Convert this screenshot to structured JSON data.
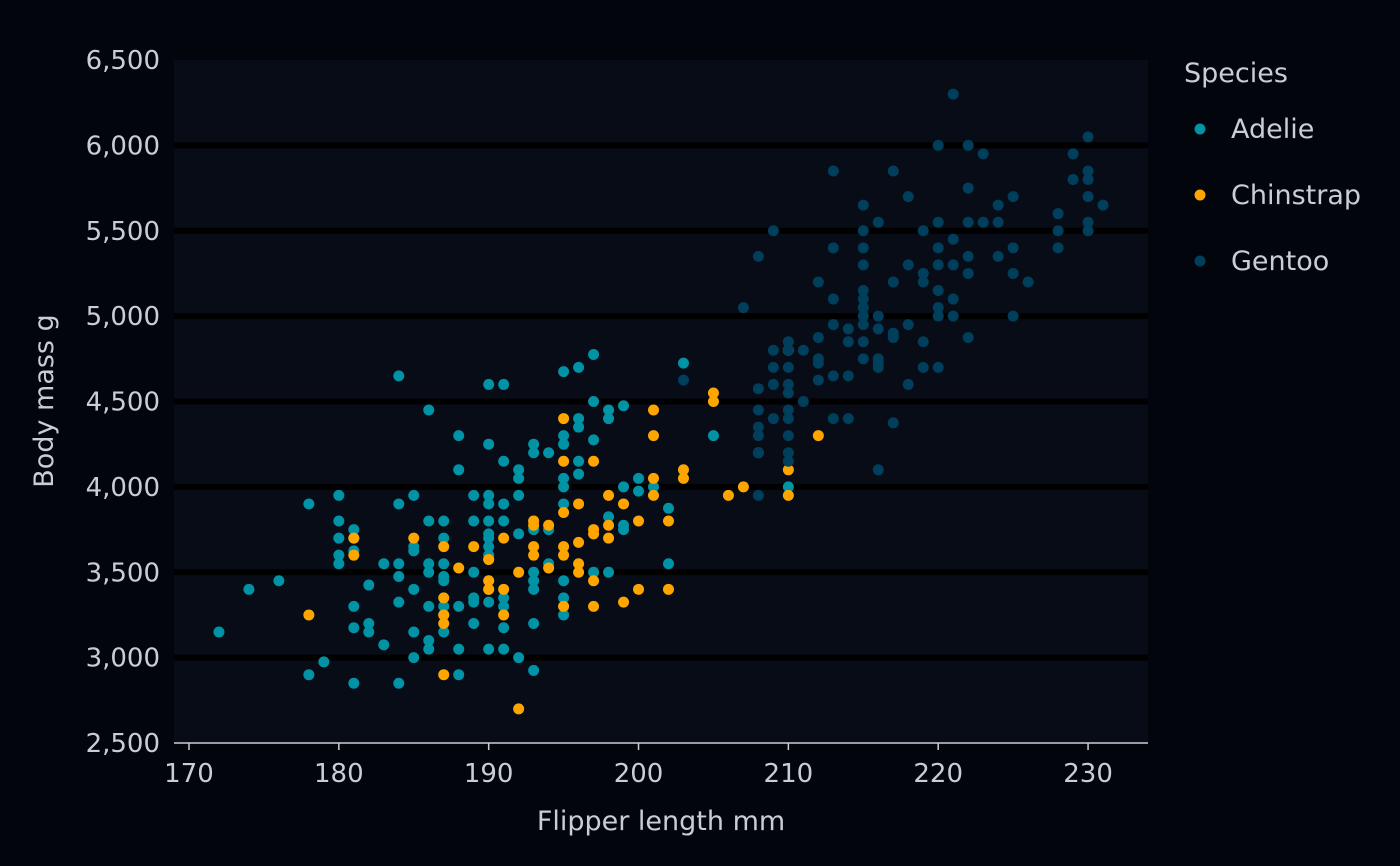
{
  "chart_data": {
    "type": "scatter",
    "title": "",
    "xlabel": "Flipper length mm",
    "ylabel": "Body mass g",
    "xlim": [
      169,
      234
    ],
    "ylim": [
      2500,
      6500
    ],
    "x_ticks": [
      170,
      180,
      190,
      200,
      210,
      220,
      230
    ],
    "x_tick_labels": [
      "170",
      "180",
      "190",
      "200",
      "210",
      "220",
      "230"
    ],
    "y_ticks": [
      2500,
      3000,
      3500,
      4000,
      4500,
      5000,
      5500,
      6000,
      6500
    ],
    "y_tick_labels": [
      "2,500",
      "3,000",
      "3,500",
      "4,000",
      "4,500",
      "5,000",
      "5,500",
      "6,000",
      "6,500"
    ],
    "grid": "horizontal major",
    "legend": {
      "title": "Species",
      "position": "right"
    },
    "colors": {
      "background": "#02050c",
      "panel": "#070c16",
      "grid": "#000000",
      "text": "#c9ced6"
    },
    "series": [
      {
        "name": "Adelie",
        "color": "#0092a5",
        "points": [
          [
            172,
            3150
          ],
          [
            174,
            3400
          ],
          [
            176,
            3450
          ],
          [
            178,
            3900
          ],
          [
            178,
            2900
          ],
          [
            179,
            2975
          ],
          [
            180,
            3950
          ],
          [
            180,
            3800
          ],
          [
            180,
            3700
          ],
          [
            180,
            3600
          ],
          [
            180,
            3550
          ],
          [
            181,
            3750
          ],
          [
            181,
            3700
          ],
          [
            181,
            3625
          ],
          [
            181,
            3300
          ],
          [
            181,
            3175
          ],
          [
            181,
            2850
          ],
          [
            182,
            3425
          ],
          [
            182,
            3200
          ],
          [
            182,
            3150
          ],
          [
            183,
            3550
          ],
          [
            183,
            3075
          ],
          [
            184,
            3900
          ],
          [
            184,
            3550
          ],
          [
            184,
            3475
          ],
          [
            184,
            3325
          ],
          [
            184,
            2850
          ],
          [
            184,
            4650
          ],
          [
            185,
            3950
          ],
          [
            185,
            3650
          ],
          [
            185,
            3625
          ],
          [
            185,
            3400
          ],
          [
            185,
            3150
          ],
          [
            185,
            3000
          ],
          [
            186,
            4450
          ],
          [
            186,
            3800
          ],
          [
            186,
            3550
          ],
          [
            186,
            3500
          ],
          [
            186,
            3300
          ],
          [
            186,
            3100
          ],
          [
            186,
            3050
          ],
          [
            187,
            3800
          ],
          [
            187,
            3700
          ],
          [
            187,
            3550
          ],
          [
            187,
            3475
          ],
          [
            187,
            3450
          ],
          [
            187,
            3300
          ],
          [
            187,
            3250
          ],
          [
            187,
            3150
          ],
          [
            188,
            4300
          ],
          [
            188,
            4100
          ],
          [
            188,
            3300
          ],
          [
            188,
            3050
          ],
          [
            188,
            2900
          ],
          [
            189,
            3950
          ],
          [
            189,
            3800
          ],
          [
            189,
            3500
          ],
          [
            189,
            3350
          ],
          [
            189,
            3325
          ],
          [
            189,
            3200
          ],
          [
            190,
            4600
          ],
          [
            190,
            4250
          ],
          [
            190,
            3950
          ],
          [
            190,
            3900
          ],
          [
            190,
            3800
          ],
          [
            190,
            3725
          ],
          [
            190,
            3700
          ],
          [
            190,
            3650
          ],
          [
            190,
            3600
          ],
          [
            190,
            3575
          ],
          [
            190,
            3450
          ],
          [
            190,
            3400
          ],
          [
            190,
            3325
          ],
          [
            190,
            3050
          ],
          [
            191,
            4600
          ],
          [
            191,
            4150
          ],
          [
            191,
            3900
          ],
          [
            191,
            3800
          ],
          [
            191,
            3350
          ],
          [
            191,
            3300
          ],
          [
            191,
            3175
          ],
          [
            191,
            3050
          ],
          [
            192,
            4100
          ],
          [
            192,
            4050
          ],
          [
            192,
            3950
          ],
          [
            192,
            3725
          ],
          [
            192,
            3000
          ],
          [
            193,
            4250
          ],
          [
            193,
            4200
          ],
          [
            193,
            3800
          ],
          [
            193,
            3750
          ],
          [
            193,
            3500
          ],
          [
            193,
            3450
          ],
          [
            193,
            3400
          ],
          [
            193,
            3200
          ],
          [
            193,
            2925
          ],
          [
            194,
            4200
          ],
          [
            194,
            3750
          ],
          [
            194,
            3550
          ],
          [
            195,
            4675
          ],
          [
            195,
            4300
          ],
          [
            195,
            4250
          ],
          [
            195,
            4050
          ],
          [
            195,
            4000
          ],
          [
            195,
            3900
          ],
          [
            195,
            3450
          ],
          [
            195,
            3350
          ],
          [
            195,
            3300
          ],
          [
            195,
            3250
          ],
          [
            196,
            4700
          ],
          [
            196,
            4400
          ],
          [
            196,
            4350
          ],
          [
            196,
            4150
          ],
          [
            196,
            4075
          ],
          [
            197,
            4775
          ],
          [
            197,
            4500
          ],
          [
            197,
            4275
          ],
          [
            197,
            3500
          ],
          [
            198,
            4450
          ],
          [
            198,
            4400
          ],
          [
            198,
            3825
          ],
          [
            198,
            3500
          ],
          [
            199,
            4475
          ],
          [
            199,
            4000
          ],
          [
            199,
            3775
          ],
          [
            199,
            3750
          ],
          [
            200,
            4050
          ],
          [
            200,
            3975
          ],
          [
            201,
            4000
          ],
          [
            202,
            3875
          ],
          [
            202,
            3550
          ],
          [
            203,
            4725
          ],
          [
            205,
            4300
          ],
          [
            208,
            4200
          ],
          [
            210,
            4000
          ]
        ]
      },
      {
        "name": "Chinstrap",
        "color": "#ffa500",
        "points": [
          [
            178,
            3250
          ],
          [
            181,
            3700
          ],
          [
            181,
            3600
          ],
          [
            185,
            3700
          ],
          [
            187,
            3650
          ],
          [
            187,
            3350
          ],
          [
            187,
            3250
          ],
          [
            187,
            3200
          ],
          [
            187,
            2900
          ],
          [
            188,
            3525
          ],
          [
            189,
            3650
          ],
          [
            190,
            3575
          ],
          [
            190,
            3450
          ],
          [
            190,
            3400
          ],
          [
            191,
            3700
          ],
          [
            191,
            3400
          ],
          [
            191,
            3250
          ],
          [
            192,
            3500
          ],
          [
            192,
            2700
          ],
          [
            193,
            3800
          ],
          [
            193,
            3775
          ],
          [
            193,
            3650
          ],
          [
            193,
            3600
          ],
          [
            194,
            3775
          ],
          [
            194,
            3525
          ],
          [
            195,
            4400
          ],
          [
            195,
            4150
          ],
          [
            195,
            3850
          ],
          [
            195,
            3650
          ],
          [
            195,
            3600
          ],
          [
            195,
            3300
          ],
          [
            196,
            3900
          ],
          [
            196,
            3675
          ],
          [
            196,
            3550
          ],
          [
            196,
            3500
          ],
          [
            197,
            4150
          ],
          [
            197,
            3750
          ],
          [
            197,
            3725
          ],
          [
            197,
            3450
          ],
          [
            197,
            3300
          ],
          [
            198,
            3950
          ],
          [
            198,
            3775
          ],
          [
            198,
            3700
          ],
          [
            199,
            3900
          ],
          [
            199,
            3325
          ],
          [
            200,
            3800
          ],
          [
            200,
            3400
          ],
          [
            201,
            4450
          ],
          [
            201,
            4300
          ],
          [
            201,
            4050
          ],
          [
            201,
            3950
          ],
          [
            202,
            3800
          ],
          [
            202,
            3400
          ],
          [
            203,
            4100
          ],
          [
            203,
            4050
          ],
          [
            205,
            4550
          ],
          [
            205,
            4500
          ],
          [
            206,
            3950
          ],
          [
            207,
            4000
          ],
          [
            210,
            4800
          ],
          [
            210,
            4100
          ],
          [
            210,
            3950
          ],
          [
            212,
            4300
          ]
        ]
      },
      {
        "name": "Gentoo",
        "color": "#003f5c",
        "points": [
          [
            203,
            4625
          ],
          [
            207,
            5050
          ],
          [
            208,
            5350
          ],
          [
            208,
            4575
          ],
          [
            208,
            4450
          ],
          [
            208,
            4350
          ],
          [
            208,
            4300
          ],
          [
            208,
            4200
          ],
          [
            208,
            3950
          ],
          [
            209,
            5500
          ],
          [
            209,
            4800
          ],
          [
            209,
            4700
          ],
          [
            209,
            4600
          ],
          [
            209,
            4400
          ],
          [
            210,
            4850
          ],
          [
            210,
            4800
          ],
          [
            210,
            4700
          ],
          [
            210,
            4600
          ],
          [
            210,
            4550
          ],
          [
            210,
            4450
          ],
          [
            210,
            4400
          ],
          [
            210,
            4300
          ],
          [
            210,
            4200
          ],
          [
            210,
            4150
          ],
          [
            211,
            4800
          ],
          [
            211,
            4500
          ],
          [
            212,
            5200
          ],
          [
            212,
            4875
          ],
          [
            212,
            4750
          ],
          [
            212,
            4725
          ],
          [
            212,
            4625
          ],
          [
            213,
            5850
          ],
          [
            213,
            5400
          ],
          [
            213,
            5100
          ],
          [
            213,
            4950
          ],
          [
            213,
            4650
          ],
          [
            213,
            4400
          ],
          [
            214,
            4925
          ],
          [
            214,
            4850
          ],
          [
            214,
            4650
          ],
          [
            214,
            4400
          ],
          [
            215,
            5650
          ],
          [
            215,
            5500
          ],
          [
            215,
            5400
          ],
          [
            215,
            5300
          ],
          [
            215,
            5150
          ],
          [
            215,
            5100
          ],
          [
            215,
            5050
          ],
          [
            215,
            5000
          ],
          [
            215,
            4950
          ],
          [
            215,
            4850
          ],
          [
            215,
            4750
          ],
          [
            216,
            5550
          ],
          [
            216,
            5000
          ],
          [
            216,
            4925
          ],
          [
            216,
            4750
          ],
          [
            216,
            4725
          ],
          [
            216,
            4700
          ],
          [
            216,
            4100
          ],
          [
            217,
            5850
          ],
          [
            217,
            5200
          ],
          [
            217,
            4900
          ],
          [
            217,
            4875
          ],
          [
            217,
            4375
          ],
          [
            218,
            5700
          ],
          [
            218,
            5300
          ],
          [
            218,
            4950
          ],
          [
            218,
            4600
          ],
          [
            219,
            5500
          ],
          [
            219,
            5250
          ],
          [
            219,
            5200
          ],
          [
            219,
            4850
          ],
          [
            219,
            4700
          ],
          [
            220,
            6000
          ],
          [
            220,
            5550
          ],
          [
            220,
            5400
          ],
          [
            220,
            5300
          ],
          [
            220,
            5150
          ],
          [
            220,
            5050
          ],
          [
            220,
            5000
          ],
          [
            220,
            4700
          ],
          [
            221,
            6300
          ],
          [
            221,
            5450
          ],
          [
            221,
            5300
          ],
          [
            221,
            5100
          ],
          [
            221,
            5000
          ],
          [
            222,
            6000
          ],
          [
            222,
            5750
          ],
          [
            222,
            5550
          ],
          [
            222,
            5350
          ],
          [
            222,
            5250
          ],
          [
            222,
            4875
          ],
          [
            223,
            5950
          ],
          [
            223,
            5550
          ],
          [
            224,
            5650
          ],
          [
            224,
            5550
          ],
          [
            224,
            5350
          ],
          [
            225,
            5700
          ],
          [
            225,
            5400
          ],
          [
            225,
            5250
          ],
          [
            225,
            5000
          ],
          [
            226,
            5200
          ],
          [
            228,
            5600
          ],
          [
            228,
            5500
          ],
          [
            228,
            5400
          ],
          [
            229,
            5950
          ],
          [
            229,
            5800
          ],
          [
            230,
            6050
          ],
          [
            230,
            5850
          ],
          [
            230,
            5800
          ],
          [
            230,
            5700
          ],
          [
            230,
            5550
          ],
          [
            230,
            5500
          ],
          [
            231,
            5650
          ]
        ]
      }
    ]
  }
}
